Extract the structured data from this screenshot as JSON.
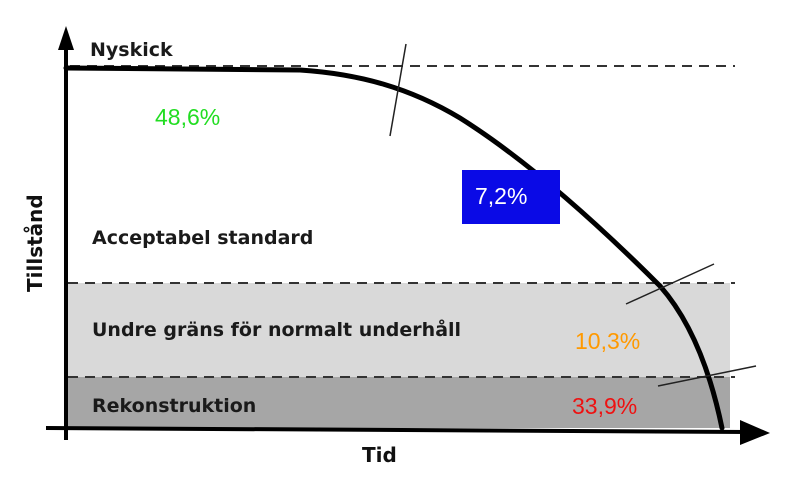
{
  "axes": {
    "x_label": "Tid",
    "y_label": "Tillstånd"
  },
  "zones": {
    "top": "Nyskick",
    "acceptable": "Acceptabel standard",
    "lower_limit": "Undre gräns för normalt underhåll",
    "reconstruction": "Rekonstruktion"
  },
  "percentages": {
    "nyskick_segment": "48,6%",
    "acceptable_segment": "7,2%",
    "normal_maintenance_segment": "10,3%",
    "reconstruction_segment": "33,9%"
  },
  "colors": {
    "green": "#22dd22",
    "blue_box": "#0a0ae6",
    "blue_box_text": "#ffffff",
    "orange": "#ff9900",
    "red": "#ee1111",
    "band_light": "#d9d9d9",
    "band_dark": "#a6a6a6",
    "curve": "#000000"
  }
}
